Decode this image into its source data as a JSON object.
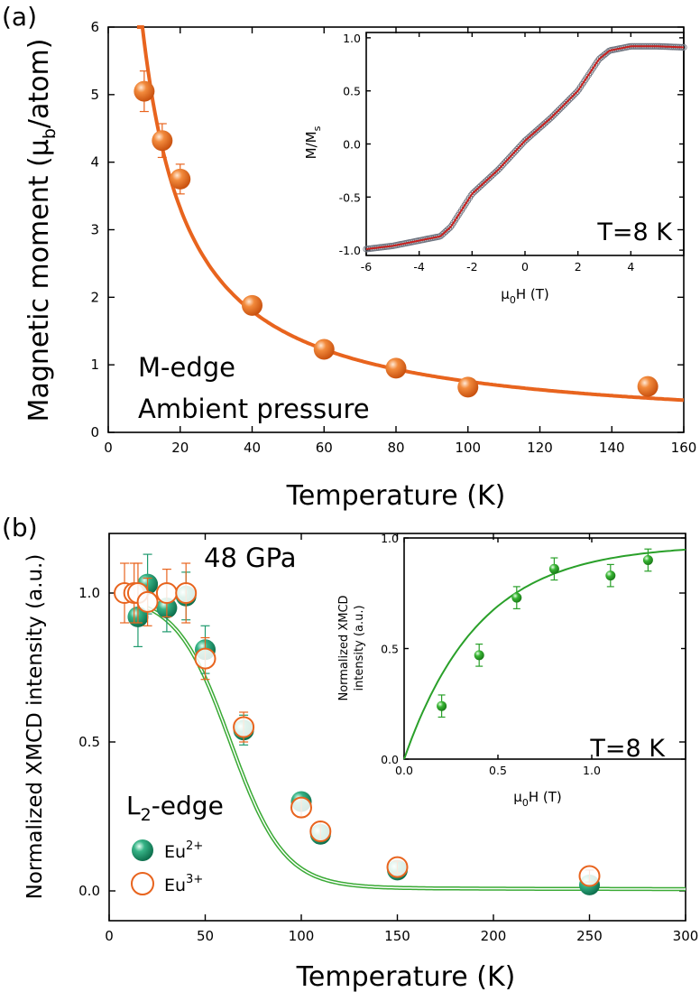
{
  "chart_data": [
    {
      "panel": "(a)",
      "type": "scatter",
      "xlabel": "Temperature (K)",
      "ylabel": "Magnetic moment (μb/atom)",
      "xlim": [
        0,
        160
      ],
      "ylim": [
        0,
        6
      ],
      "xticks": [
        "0",
        "20",
        "40",
        "60",
        "80",
        "100",
        "120",
        "140",
        "160"
      ],
      "yticks": [
        "0",
        "1",
        "2",
        "3",
        "4",
        "5",
        "6"
      ],
      "annotations": [
        "M-edge",
        "Ambient pressure"
      ],
      "color": "#e8641e",
      "points": [
        {
          "x": 10,
          "y": 5.05,
          "err": 0.3
        },
        {
          "x": 15,
          "y": 4.32,
          "err": 0.25
        },
        {
          "x": 20,
          "y": 3.75,
          "err": 0.22
        },
        {
          "x": 40,
          "y": 1.88,
          "err": 0.05
        },
        {
          "x": 60,
          "y": 1.23,
          "err": 0.05
        },
        {
          "x": 80,
          "y": 0.95,
          "err": 0.05
        },
        {
          "x": 100,
          "y": 0.67,
          "err": 0.05
        },
        {
          "x": 150,
          "y": 0.68,
          "err": 0.05
        }
      ],
      "fit": {
        "model": "Curie-Weiss",
        "C": 78,
        "theta": -3.5
      },
      "inset": {
        "type": "line",
        "xlabel": "μ0H (T)",
        "ylabel": "M/Ms",
        "xlim": [
          -6,
          6
        ],
        "ylim": [
          -1.05,
          1.05
        ],
        "xticks": [
          "-6",
          "-4",
          "-2",
          "0",
          "2",
          "4"
        ],
        "yticks": [
          "-1.0",
          "-0.5",
          "0.0",
          "0.5",
          "1.0"
        ],
        "annotation": "T=8 K",
        "curve": [
          {
            "x": -6,
            "y": -0.99
          },
          {
            "x": -5,
            "y": -0.96
          },
          {
            "x": -4,
            "y": -0.91
          },
          {
            "x": -3.2,
            "y": -0.87
          },
          {
            "x": -2.8,
            "y": -0.78
          },
          {
            "x": -2,
            "y": -0.47
          },
          {
            "x": -1,
            "y": -0.24
          },
          {
            "x": 0,
            "y": 0.03
          },
          {
            "x": 1,
            "y": 0.25
          },
          {
            "x": 2,
            "y": 0.5
          },
          {
            "x": 2.8,
            "y": 0.8
          },
          {
            "x": 3.2,
            "y": 0.88
          },
          {
            "x": 4,
            "y": 0.92
          },
          {
            "x": 5,
            "y": 0.92
          },
          {
            "x": 6,
            "y": 0.91
          }
        ]
      }
    },
    {
      "panel": "(b)",
      "type": "scatter",
      "xlabel": "Temperature (K)",
      "ylabel": "Normalized XMCD intensity (a.u.)",
      "xlim": [
        0,
        300
      ],
      "ylim": [
        -0.1,
        1.2
      ],
      "xticks": [
        "0",
        "50",
        "100",
        "150",
        "200",
        "250",
        "300"
      ],
      "yticks": [
        "0.0",
        "0.5",
        "1.0"
      ],
      "annotations": [
        "48 GPa"
      ],
      "edge_label": {
        "main": "L",
        "sub": "2",
        "suffix": "-edge"
      },
      "series": [
        {
          "name": "Eu2+",
          "label_main": "Eu",
          "label_sup": "2+",
          "style": "filled",
          "color": "#1f9a6e",
          "points": [
            {
              "x": 15,
              "y": 0.92,
              "err": 0.1
            },
            {
              "x": 20,
              "y": 1.03,
              "err": 0.1
            },
            {
              "x": 30,
              "y": 0.95,
              "err": 0.08
            },
            {
              "x": 40,
              "y": 0.99,
              "err": 0.08
            },
            {
              "x": 50,
              "y": 0.81,
              "err": 0.08
            },
            {
              "x": 70,
              "y": 0.54,
              "err": 0.05
            },
            {
              "x": 100,
              "y": 0.3,
              "err": 0.03
            },
            {
              "x": 110,
              "y": 0.19,
              "err": 0.03
            },
            {
              "x": 150,
              "y": 0.07,
              "err": 0.02
            },
            {
              "x": 250,
              "y": 0.02,
              "err": 0.02
            }
          ]
        },
        {
          "name": "Eu3+",
          "label_main": "Eu",
          "label_sup": "3+",
          "style": "open",
          "color": "#e8641e",
          "points": [
            {
              "x": 8,
              "y": 1.0,
              "err": 0.1
            },
            {
              "x": 13,
              "y": 1.0,
              "err": 0.1
            },
            {
              "x": 15,
              "y": 1.0,
              "err": 0.1
            },
            {
              "x": 20,
              "y": 0.97,
              "err": 0.08
            },
            {
              "x": 30,
              "y": 1.0,
              "err": 0.08
            },
            {
              "x": 40,
              "y": 1.0,
              "err": 0.1
            },
            {
              "x": 50,
              "y": 0.78,
              "err": 0.07
            },
            {
              "x": 70,
              "y": 0.55,
              "err": 0.05
            },
            {
              "x": 100,
              "y": 0.28,
              "err": 0.03
            },
            {
              "x": 110,
              "y": 0.2,
              "err": 0.03
            },
            {
              "x": 150,
              "y": 0.08,
              "err": 0.02
            },
            {
              "x": 250,
              "y": 0.05,
              "err": 0.02
            }
          ]
        }
      ],
      "fit": {
        "model": "sigmoid",
        "T0": 63,
        "w": 14,
        "color": "#3aaa35"
      },
      "inset": {
        "type": "scatter",
        "xlabel": "μ0H (T)",
        "ylabel": "Normalized XMCD intensity (a.u.)",
        "xlim": [
          0,
          1.5
        ],
        "ylim": [
          0,
          1
        ],
        "xticks": [
          "0.0",
          "0.5",
          "1.0"
        ],
        "yticks": [
          "0.0",
          "0.5",
          "1.0"
        ],
        "annotation": "T=8 K",
        "color": "#2aa02a",
        "points": [
          {
            "x": 0.2,
            "y": 0.24,
            "err": 0.05
          },
          {
            "x": 0.4,
            "y": 0.47,
            "err": 0.05
          },
          {
            "x": 0.6,
            "y": 0.73,
            "err": 0.05
          },
          {
            "x": 0.8,
            "y": 0.86,
            "err": 0.05
          },
          {
            "x": 1.1,
            "y": 0.83,
            "err": 0.05
          },
          {
            "x": 1.3,
            "y": 0.9,
            "err": 0.05
          }
        ],
        "fit": {
          "model": "saturation",
          "a": 0.97,
          "k": 2.5
        }
      }
    }
  ],
  "panel_labels": [
    "(a)",
    "(b)"
  ],
  "inset_a_ylabel": {
    "main": "M/M",
    "sub": "s"
  },
  "inset_xlabel": {
    "pre": "μ",
    "sub": "0",
    "post": "H (T)"
  },
  "ylabel_a_parts": {
    "pre": "Magnetic moment (μ",
    "sub": "b",
    "post": "/atom)"
  },
  "inset_b_ylabel_lines": [
    "Normalized XMCD",
    "intensity (a.u.)"
  ]
}
